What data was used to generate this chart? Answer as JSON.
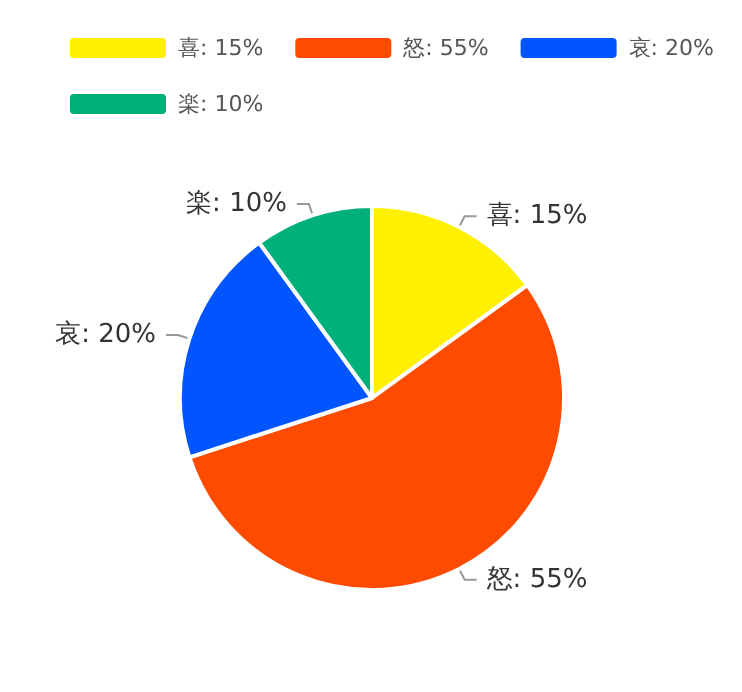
{
  "chart_data": {
    "type": "pie",
    "categories": [
      "喜",
      "怒",
      "哀",
      "楽"
    ],
    "values": [
      15,
      55,
      20,
      10
    ],
    "value_labels": [
      "15%",
      "55%",
      "20%",
      "10%"
    ],
    "colors": [
      "#fff000",
      "#ff4b00",
      "#0055ff",
      "#00b07b"
    ],
    "legend": "top left"
  }
}
